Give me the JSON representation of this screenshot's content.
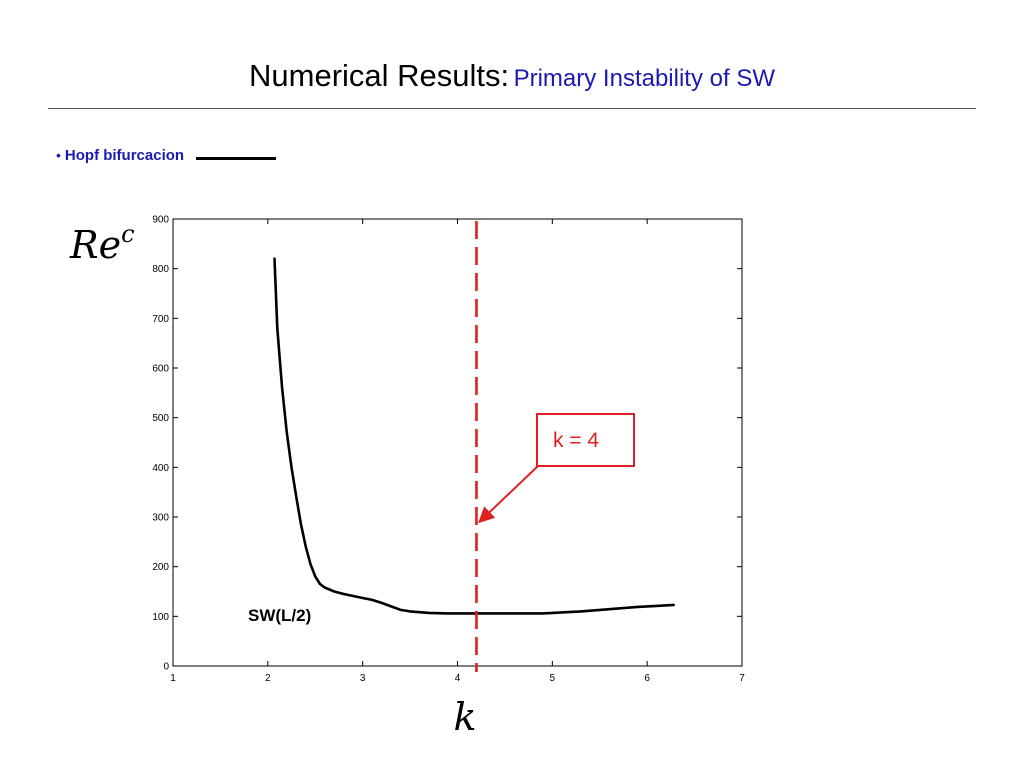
{
  "slide": {
    "title_main": "Numerical Results:",
    "title_sub": "Primary Instability of SW",
    "bullet": "•",
    "legend_label": "Hopf bifurcacion"
  },
  "colors": {
    "title_sub": "#1a1ab0",
    "curve": "#000000",
    "marker": "#e02020"
  },
  "chart_data": {
    "type": "line",
    "title": "",
    "xlabel": "k",
    "ylabel": "Re",
    "ylabel_sup": "c",
    "xlim": [
      1,
      7
    ],
    "ylim": [
      0,
      900
    ],
    "xticks": [
      1,
      2,
      3,
      4,
      5,
      6,
      7
    ],
    "yticks": [
      0,
      100,
      200,
      300,
      400,
      500,
      600,
      700,
      800,
      900
    ],
    "grid": false,
    "series": [
      {
        "name": "SW(L/2)",
        "x": [
          2.07,
          2.1,
          2.15,
          2.2,
          2.25,
          2.3,
          2.35,
          2.4,
          2.45,
          2.5,
          2.55,
          2.6,
          2.7,
          2.8,
          2.9,
          3.0,
          3.1,
          3.2,
          3.3,
          3.4,
          3.5,
          3.7,
          3.9,
          4.1,
          4.3,
          4.5,
          4.7,
          4.9,
          5.1,
          5.3,
          5.5,
          5.7,
          5.9,
          6.1,
          6.28
        ],
        "y": [
          820,
          680,
          560,
          470,
          400,
          340,
          285,
          240,
          205,
          180,
          165,
          158,
          150,
          145,
          141,
          137,
          133,
          127,
          120,
          113,
          110,
          107,
          106,
          106,
          106,
          106,
          106,
          106,
          108,
          110,
          113,
          116,
          119,
          121,
          123
        ]
      }
    ],
    "annotations": {
      "vline_x": 4.2,
      "marker_label": "k = 4",
      "marker_arrow_target": [
        4.23,
        290
      ],
      "curve_label": "SW(L/2)"
    }
  }
}
